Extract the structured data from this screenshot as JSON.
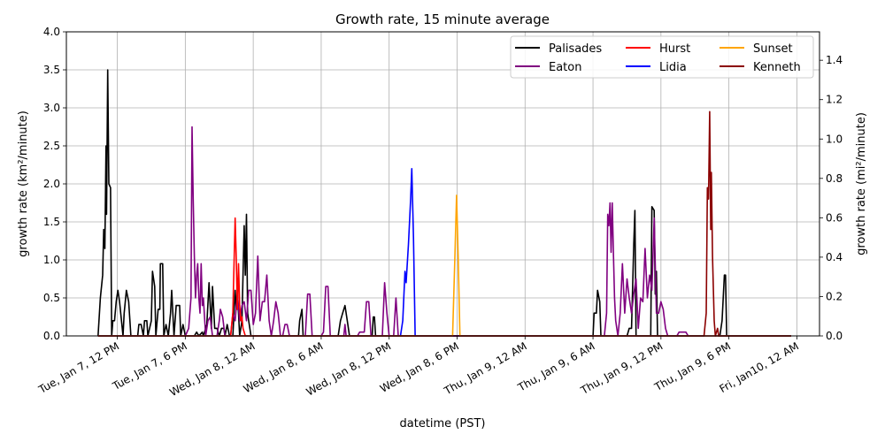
{
  "chart_data": {
    "type": "line",
    "title": "Growth rate, 15 minute average",
    "xlabel": "datetime (PST)",
    "ylabel": "growth rate (km²/minute)",
    "ylabel_right": "growth rate (mi²/minute)",
    "x_ticks": [
      "Tue, Jan 7, 12 PM",
      "Tue, Jan 7,  6 PM",
      "Wed, Jan 8, 12 AM",
      "Wed, Jan 8,  6 AM",
      "Wed, Jan 8, 12 PM",
      "Wed, Jan 8,  6 PM",
      "Thu, Jan 9, 12 AM",
      "Thu, Jan 9,  6 AM",
      "Thu, Jan 9, 12 PM",
      "Thu, Jan 9,  6 PM",
      "Fri, Jan10, 12 AM"
    ],
    "x_unit_note_hours_from_first_tick": [
      0,
      6,
      12,
      18,
      24,
      30,
      36,
      42,
      48,
      54,
      60
    ],
    "xlim_hours": [
      -4.5,
      62
    ],
    "y_ticks": [
      "0.0",
      "0.5",
      "1.0",
      "1.5",
      "2.0",
      "2.5",
      "3.0",
      "3.5",
      "4.0"
    ],
    "ylim": [
      0,
      4.0
    ],
    "y2_ticks": [
      "0.0",
      "0.2",
      "0.4",
      "0.6",
      "0.8",
      "1.0",
      "1.2",
      "1.4"
    ],
    "y2_per_y": 0.3861,
    "grid": true,
    "legend_position": "top-right",
    "series": [
      {
        "name": "Palisades",
        "color": "#000000",
        "points": [
          [
            -1.7,
            0
          ],
          [
            -1.5,
            0.5
          ],
          [
            -1.3,
            0.8
          ],
          [
            -1.2,
            1.4
          ],
          [
            -1.1,
            1.15
          ],
          [
            -1.0,
            2.5
          ],
          [
            -0.95,
            1.6
          ],
          [
            -0.85,
            3.5
          ],
          [
            -0.75,
            2.0
          ],
          [
            -0.6,
            1.95
          ],
          [
            -0.5,
            0.0
          ],
          [
            -0.4,
            0.2
          ],
          [
            -0.25,
            0.2
          ],
          [
            -0.1,
            0.45
          ],
          [
            0.05,
            0.6
          ],
          [
            0.2,
            0.45
          ],
          [
            0.3,
            0.3
          ],
          [
            0.5,
            0
          ],
          [
            0.6,
            0.3
          ],
          [
            0.8,
            0.6
          ],
          [
            1.0,
            0.45
          ],
          [
            1.2,
            0.0
          ],
          [
            1.8,
            0
          ],
          [
            1.9,
            0.15
          ],
          [
            2.1,
            0.15
          ],
          [
            2.3,
            0
          ],
          [
            2.4,
            0.2
          ],
          [
            2.6,
            0.2
          ],
          [
            2.7,
            0
          ],
          [
            3.0,
            0.2
          ],
          [
            3.1,
            0.85
          ],
          [
            3.3,
            0.65
          ],
          [
            3.4,
            0
          ],
          [
            3.6,
            0.35
          ],
          [
            3.75,
            0.35
          ],
          [
            3.8,
            0.95
          ],
          [
            4.0,
            0.95
          ],
          [
            4.1,
            0
          ],
          [
            4.3,
            0.15
          ],
          [
            4.5,
            0
          ],
          [
            4.7,
            0.3
          ],
          [
            4.8,
            0.6
          ],
          [
            4.9,
            0.3
          ],
          [
            5.0,
            0
          ],
          [
            5.2,
            0.4
          ],
          [
            5.5,
            0.4
          ],
          [
            5.6,
            0
          ],
          [
            5.8,
            0.15
          ],
          [
            6.0,
            0
          ],
          [
            6.8,
            0
          ],
          [
            7.0,
            0.05
          ],
          [
            7.2,
            0
          ],
          [
            7.5,
            0.05
          ],
          [
            7.6,
            0
          ],
          [
            7.9,
            0.15
          ],
          [
            8.1,
            0.7
          ],
          [
            8.3,
            0.1
          ],
          [
            8.4,
            0.65
          ],
          [
            8.6,
            0.1
          ],
          [
            8.8,
            0.1
          ],
          [
            9.0,
            0
          ],
          [
            9.2,
            0.1
          ],
          [
            9.4,
            0.1
          ],
          [
            9.5,
            0
          ],
          [
            9.7,
            0.15
          ],
          [
            9.9,
            0
          ],
          [
            10.2,
            0
          ],
          [
            10.4,
            0.6
          ],
          [
            10.5,
            0.35
          ],
          [
            10.6,
            0.6
          ],
          [
            10.8,
            0
          ],
          [
            11.0,
            0.2
          ],
          [
            11.2,
            1.45
          ],
          [
            11.3,
            0.8
          ],
          [
            11.4,
            1.6
          ],
          [
            11.5,
            0.3
          ],
          [
            11.6,
            0.2
          ],
          [
            11.8,
            0
          ],
          [
            16.0,
            0
          ],
          [
            16.1,
            0.2
          ],
          [
            16.3,
            0.35
          ],
          [
            16.4,
            0
          ],
          [
            19.5,
            0
          ],
          [
            19.7,
            0.2
          ],
          [
            19.9,
            0.3
          ],
          [
            20.1,
            0.4
          ],
          [
            20.3,
            0.2
          ],
          [
            20.5,
            0
          ],
          [
            22.5,
            0
          ],
          [
            22.6,
            0.25
          ],
          [
            22.7,
            0.25
          ],
          [
            22.8,
            0
          ],
          [
            42.0,
            0
          ],
          [
            42.1,
            0.3
          ],
          [
            42.3,
            0.3
          ],
          [
            42.4,
            0.6
          ],
          [
            42.6,
            0.45
          ],
          [
            42.7,
            0
          ],
          [
            45.0,
            0
          ],
          [
            45.2,
            0.1
          ],
          [
            45.4,
            0.1
          ],
          [
            45.6,
            1.2
          ],
          [
            45.7,
            1.65
          ],
          [
            45.8,
            0
          ],
          [
            47.1,
            0
          ],
          [
            47.2,
            1.7
          ],
          [
            47.4,
            1.65
          ],
          [
            47.5,
            0.55
          ],
          [
            47.6,
            0.85
          ],
          [
            47.7,
            0
          ],
          [
            53.2,
            0
          ],
          [
            53.4,
            0.2
          ],
          [
            53.6,
            0.8
          ],
          [
            53.7,
            0.8
          ],
          [
            53.8,
            0
          ]
        ]
      },
      {
        "name": "Eaton",
        "color": "#800080",
        "points": [
          [
            6.0,
            0
          ],
          [
            6.3,
            0.1
          ],
          [
            6.5,
            0.5
          ],
          [
            6.6,
            2.75
          ],
          [
            6.7,
            1.8
          ],
          [
            6.8,
            1.05
          ],
          [
            6.9,
            0.5
          ],
          [
            7.0,
            0.8
          ],
          [
            7.1,
            0.95
          ],
          [
            7.2,
            0.5
          ],
          [
            7.3,
            0.3
          ],
          [
            7.4,
            0.95
          ],
          [
            7.5,
            0.4
          ],
          [
            7.6,
            0.5
          ],
          [
            7.8,
            0
          ],
          [
            8.0,
            0.2
          ],
          [
            8.2,
            0.25
          ],
          [
            8.4,
            0
          ],
          [
            8.8,
            0
          ],
          [
            9.0,
            0.2
          ],
          [
            9.1,
            0.35
          ],
          [
            9.3,
            0.25
          ],
          [
            9.5,
            0
          ],
          [
            10.0,
            0
          ],
          [
            10.2,
            0.3
          ],
          [
            10.4,
            0.2
          ],
          [
            10.6,
            0.55
          ],
          [
            10.8,
            0.2
          ],
          [
            11.0,
            0.4
          ],
          [
            11.2,
            0.45
          ],
          [
            11.4,
            0.2
          ],
          [
            11.6,
            0.6
          ],
          [
            11.8,
            0.6
          ],
          [
            12.0,
            0.15
          ],
          [
            12.2,
            0.3
          ],
          [
            12.4,
            1.05
          ],
          [
            12.6,
            0.2
          ],
          [
            12.8,
            0.45
          ],
          [
            13.0,
            0.45
          ],
          [
            13.2,
            0.8
          ],
          [
            13.4,
            0.2
          ],
          [
            13.6,
            0
          ],
          [
            13.8,
            0.2
          ],
          [
            14.0,
            0.45
          ],
          [
            14.2,
            0.3
          ],
          [
            14.4,
            0
          ],
          [
            14.6,
            0
          ],
          [
            14.8,
            0.15
          ],
          [
            15.0,
            0.15
          ],
          [
            15.2,
            0
          ],
          [
            16.6,
            0
          ],
          [
            16.8,
            0.55
          ],
          [
            17.0,
            0.55
          ],
          [
            17.2,
            0
          ],
          [
            18.0,
            0
          ],
          [
            18.2,
            0.05
          ],
          [
            18.4,
            0.65
          ],
          [
            18.6,
            0.65
          ],
          [
            18.8,
            0
          ],
          [
            20.0,
            0
          ],
          [
            20.1,
            0.15
          ],
          [
            20.2,
            0
          ],
          [
            21.2,
            0
          ],
          [
            21.4,
            0.05
          ],
          [
            21.8,
            0.05
          ],
          [
            22.0,
            0.45
          ],
          [
            22.2,
            0.45
          ],
          [
            22.4,
            0
          ],
          [
            23.4,
            0
          ],
          [
            23.6,
            0.7
          ],
          [
            23.8,
            0.3
          ],
          [
            24.0,
            0
          ],
          [
            24.4,
            0
          ],
          [
            24.6,
            0.5
          ],
          [
            24.8,
            0
          ],
          [
            43.0,
            0
          ],
          [
            43.2,
            0.3
          ],
          [
            43.3,
            1.6
          ],
          [
            43.4,
            1.45
          ],
          [
            43.5,
            1.75
          ],
          [
            43.6,
            1.1
          ],
          [
            43.7,
            1.75
          ],
          [
            43.8,
            1.1
          ],
          [
            43.9,
            0.5
          ],
          [
            44.0,
            0.2
          ],
          [
            44.2,
            0
          ],
          [
            44.4,
            0.3
          ],
          [
            44.6,
            0.95
          ],
          [
            44.8,
            0.3
          ],
          [
            45.0,
            0.75
          ],
          [
            45.2,
            0.5
          ],
          [
            45.4,
            0.3
          ],
          [
            45.6,
            0.55
          ],
          [
            45.8,
            0.75
          ],
          [
            46.0,
            0.1
          ],
          [
            46.2,
            0.5
          ],
          [
            46.4,
            0.45
          ],
          [
            46.6,
            1.15
          ],
          [
            46.8,
            0.5
          ],
          [
            47.0,
            0.8
          ],
          [
            47.2,
            0.6
          ],
          [
            47.4,
            1.55
          ],
          [
            47.6,
            0.3
          ],
          [
            47.8,
            0.3
          ],
          [
            48.0,
            0.45
          ],
          [
            48.2,
            0.35
          ],
          [
            48.4,
            0.1
          ],
          [
            48.6,
            0
          ],
          [
            49.4,
            0
          ],
          [
            49.6,
            0.05
          ],
          [
            50.2,
            0.05
          ],
          [
            50.4,
            0
          ]
        ]
      },
      {
        "name": "Hurst",
        "color": "#ff0000",
        "points": [
          [
            10.0,
            0
          ],
          [
            10.2,
            0.3
          ],
          [
            10.4,
            1.55
          ],
          [
            10.5,
            1.0
          ],
          [
            10.6,
            0.35
          ],
          [
            10.7,
            0.95
          ],
          [
            10.8,
            0.4
          ],
          [
            10.9,
            0.2
          ],
          [
            11.0,
            0.25
          ],
          [
            11.1,
            0.1
          ],
          [
            11.3,
            0
          ]
        ]
      },
      {
        "name": "Lidia",
        "color": "#0000ff",
        "points": [
          [
            25.0,
            0
          ],
          [
            25.2,
            0.2
          ],
          [
            25.4,
            0.85
          ],
          [
            25.5,
            0.7
          ],
          [
            25.7,
            1.2
          ],
          [
            25.9,
            1.8
          ],
          [
            26.0,
            2.2
          ],
          [
            26.15,
            1.3
          ],
          [
            26.3,
            0
          ]
        ]
      },
      {
        "name": "Sunset",
        "color": "#ffa500",
        "points": [
          [
            29.6,
            0
          ],
          [
            29.8,
            1.0
          ],
          [
            29.95,
            1.85
          ],
          [
            30.1,
            1.0
          ],
          [
            30.25,
            0
          ]
        ]
      },
      {
        "name": "Kenneth",
        "color": "#8b0000",
        "points": [
          [
            51.8,
            0
          ],
          [
            52.0,
            0.3
          ],
          [
            52.1,
            1.95
          ],
          [
            52.2,
            1.8
          ],
          [
            52.3,
            2.95
          ],
          [
            52.4,
            1.4
          ],
          [
            52.45,
            2.15
          ],
          [
            52.55,
            1.05
          ],
          [
            52.7,
            0.2
          ],
          [
            52.8,
            0
          ],
          [
            53.0,
            0.1
          ],
          [
            53.1,
            0
          ],
          [
            53.3,
            0
          ]
        ]
      }
    ]
  }
}
